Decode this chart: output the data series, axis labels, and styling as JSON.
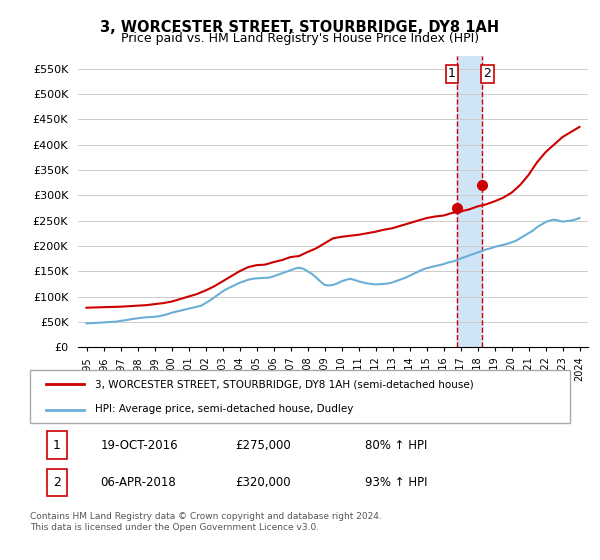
{
  "title": "3, WORCESTER STREET, STOURBRIDGE, DY8 1AH",
  "subtitle": "Price paid vs. HM Land Registry's House Price Index (HPI)",
  "legend_line1": "3, WORCESTER STREET, STOURBRIDGE, DY8 1AH (semi-detached house)",
  "legend_line2": "HPI: Average price, semi-detached house, Dudley",
  "footnote": "Contains HM Land Registry data © Crown copyright and database right 2024.\nThis data is licensed under the Open Government Licence v3.0.",
  "annotation1_label": "1",
  "annotation1_date": "19-OCT-2016",
  "annotation1_price": "£275,000",
  "annotation1_pct": "80% ↑ HPI",
  "annotation2_label": "2",
  "annotation2_date": "06-APR-2018",
  "annotation2_price": "£320,000",
  "annotation2_pct": "93% ↑ HPI",
  "hpi_color": "#6baed6",
  "price_color": "#cc0000",
  "dot1_color": "#cc0000",
  "dot2_color": "#cc0000",
  "vline_color": "#cc0000",
  "highlight_color": "#d0e4f7",
  "ylim": [
    0,
    575000
  ],
  "yticks": [
    0,
    50000,
    100000,
    150000,
    200000,
    250000,
    300000,
    350000,
    400000,
    450000,
    500000,
    550000
  ],
  "sale1_x": 2016.8,
  "sale1_y": 275000,
  "sale2_x": 2018.27,
  "sale2_y": 320000,
  "hpi_x": [
    1995,
    1995.25,
    1995.5,
    1995.75,
    1996,
    1996.25,
    1996.5,
    1996.75,
    1997,
    1997.25,
    1997.5,
    1997.75,
    1998,
    1998.25,
    1998.5,
    1998.75,
    1999,
    1999.25,
    1999.5,
    1999.75,
    2000,
    2000.25,
    2000.5,
    2000.75,
    2001,
    2001.25,
    2001.5,
    2001.75,
    2002,
    2002.25,
    2002.5,
    2002.75,
    2003,
    2003.25,
    2003.5,
    2003.75,
    2004,
    2004.25,
    2004.5,
    2004.75,
    2005,
    2005.25,
    2005.5,
    2005.75,
    2006,
    2006.25,
    2006.5,
    2006.75,
    2007,
    2007.25,
    2007.5,
    2007.75,
    2008,
    2008.25,
    2008.5,
    2008.75,
    2009,
    2009.25,
    2009.5,
    2009.75,
    2010,
    2010.25,
    2010.5,
    2010.75,
    2011,
    2011.25,
    2011.5,
    2011.75,
    2012,
    2012.25,
    2012.5,
    2012.75,
    2013,
    2013.25,
    2013.5,
    2013.75,
    2014,
    2014.25,
    2014.5,
    2014.75,
    2015,
    2015.25,
    2015.5,
    2015.75,
    2016,
    2016.25,
    2016.5,
    2016.75,
    2017,
    2017.25,
    2017.5,
    2017.75,
    2018,
    2018.25,
    2018.5,
    2018.75,
    2019,
    2019.25,
    2019.5,
    2019.75,
    2020,
    2020.25,
    2020.5,
    2020.75,
    2021,
    2021.25,
    2021.5,
    2021.75,
    2022,
    2022.25,
    2022.5,
    2022.75,
    2023,
    2023.25,
    2023.5,
    2023.75,
    2024
  ],
  "hpi_y": [
    47000,
    47500,
    48000,
    48200,
    49000,
    49500,
    50000,
    50500,
    52000,
    53000,
    54500,
    56000,
    57000,
    58000,
    59000,
    59500,
    60000,
    61000,
    63000,
    65000,
    68000,
    70000,
    72000,
    74000,
    76000,
    78000,
    80000,
    82000,
    87000,
    92000,
    98000,
    104000,
    110000,
    115000,
    119000,
    123000,
    127000,
    130000,
    133000,
    135000,
    136000,
    136500,
    137000,
    137500,
    140000,
    143000,
    146000,
    149000,
    152000,
    155000,
    157000,
    155000,
    150000,
    145000,
    138000,
    130000,
    123000,
    122000,
    123000,
    126000,
    130000,
    133000,
    135000,
    133000,
    130000,
    128000,
    126000,
    125000,
    124000,
    124500,
    125000,
    126000,
    128000,
    131000,
    134000,
    137000,
    141000,
    145000,
    149000,
    153000,
    156000,
    158000,
    160000,
    162000,
    164000,
    167000,
    169000,
    171000,
    175000,
    178000,
    181000,
    184000,
    187000,
    190000,
    193000,
    195000,
    198000,
    200000,
    202000,
    204000,
    207000,
    210000,
    215000,
    220000,
    225000,
    230000,
    237000,
    242000,
    247000,
    250000,
    252000,
    250000,
    248000,
    249000,
    250000,
    252000,
    255000
  ],
  "price_x": [
    1995,
    1995.5,
    1996,
    1996.5,
    1997,
    1997.5,
    1998,
    1998.5,
    1999,
    1999.5,
    2000,
    2000.5,
    2001,
    2001.5,
    2002,
    2002.5,
    2003,
    2003.5,
    2004,
    2004.5,
    2005,
    2005.5,
    2006,
    2006.5,
    2007,
    2007.5,
    2008,
    2008.5,
    2009,
    2009.5,
    2010,
    2010.5,
    2011,
    2011.5,
    2012,
    2012.5,
    2013,
    2013.5,
    2014,
    2014.5,
    2015,
    2015.5,
    2016,
    2016.5,
    2017,
    2017.5,
    2018,
    2018.5,
    2019,
    2019.5,
    2020,
    2020.5,
    2021,
    2021.5,
    2022,
    2022.5,
    2023,
    2023.5,
    2024
  ],
  "price_y": [
    78000,
    78500,
    79000,
    79500,
    80000,
    81000,
    82000,
    83000,
    85000,
    87000,
    90000,
    95000,
    100000,
    105000,
    112000,
    120000,
    130000,
    140000,
    150000,
    158000,
    162000,
    163000,
    168000,
    172000,
    178000,
    180000,
    188000,
    195000,
    205000,
    215000,
    218000,
    220000,
    222000,
    225000,
    228000,
    232000,
    235000,
    240000,
    245000,
    250000,
    255000,
    258000,
    260000,
    265000,
    268000,
    272000,
    278000,
    282000,
    288000,
    295000,
    305000,
    320000,
    340000,
    365000,
    385000,
    400000,
    415000,
    425000,
    435000
  ],
  "xticks": [
    1995,
    1996,
    1997,
    1998,
    1999,
    2000,
    2001,
    2002,
    2003,
    2004,
    2005,
    2006,
    2007,
    2008,
    2009,
    2010,
    2011,
    2012,
    2013,
    2014,
    2015,
    2016,
    2017,
    2018,
    2019,
    2020,
    2021,
    2022,
    2023,
    2024
  ],
  "xlim": [
    1994.5,
    2024.5
  ]
}
